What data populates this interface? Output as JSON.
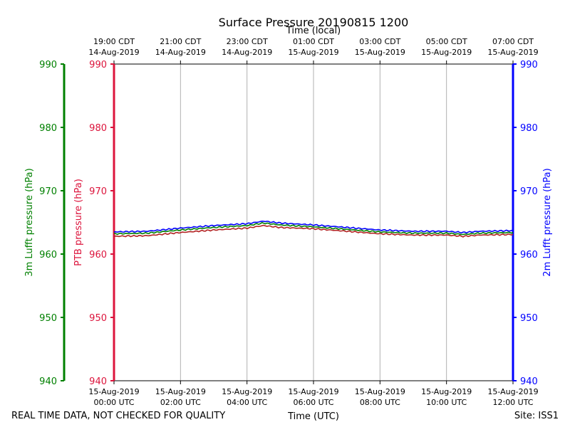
{
  "chart_data": {
    "type": "line",
    "title": "Surface Pressure 20190815 1200",
    "top_xlabel": "Time (local)",
    "xlabel": "Time (UTC)",
    "x_unit": "hours since 15-Aug-2019 00:00 UTC",
    "xlim": [
      0,
      12
    ],
    "grid": true,
    "x_ticks": [
      {
        "x": 0,
        "utc_date": "15-Aug-2019",
        "utc_time": "00:00 UTC",
        "local_time": "19:00 CDT",
        "local_date": "14-Aug-2019"
      },
      {
        "x": 2,
        "utc_date": "15-Aug-2019",
        "utc_time": "02:00 UTC",
        "local_time": "21:00 CDT",
        "local_date": "14-Aug-2019"
      },
      {
        "x": 4,
        "utc_date": "15-Aug-2019",
        "utc_time": "04:00 UTC",
        "local_time": "23:00 CDT",
        "local_date": "14-Aug-2019"
      },
      {
        "x": 6,
        "utc_date": "15-Aug-2019",
        "utc_time": "06:00 UTC",
        "local_time": "01:00 CDT",
        "local_date": "15-Aug-2019"
      },
      {
        "x": 8,
        "utc_date": "15-Aug-2019",
        "utc_time": "08:00 UTC",
        "local_time": "03:00 CDT",
        "local_date": "15-Aug-2019"
      },
      {
        "x": 10,
        "utc_date": "15-Aug-2019",
        "utc_time": "10:00 UTC",
        "local_time": "05:00 CDT",
        "local_date": "15-Aug-2019"
      },
      {
        "x": 12,
        "utc_date": "15-Aug-2019",
        "utc_time": "12:00 UTC",
        "local_time": "07:00 CDT",
        "local_date": "15-Aug-2019"
      }
    ],
    "y_axes": [
      {
        "id": "lufft3m",
        "label": "3m Lufft pressure (hPa)",
        "color": "#008000",
        "ylim": [
          940,
          990
        ],
        "ticks": [
          940,
          950,
          960,
          970,
          980,
          990
        ]
      },
      {
        "id": "ptb",
        "label": "PTB pressure (hPa)",
        "color": "#dc143c",
        "ylim": [
          940,
          990
        ],
        "ticks": [
          940,
          950,
          960,
          970,
          980,
          990
        ]
      },
      {
        "id": "lufft2m",
        "label": "2m Lufft pressure (hPa)",
        "color": "#0000ff",
        "ylim": [
          940,
          990
        ],
        "ticks": [
          940,
          950,
          960,
          970,
          980,
          990
        ]
      }
    ],
    "series": [
      {
        "name": "PTB pressure",
        "axis": "ptb",
        "color": "#b22222",
        "x": [
          0,
          1,
          2,
          3,
          4,
          4.5,
          5,
          6,
          7,
          8,
          9,
          10,
          10.5,
          11,
          12
        ],
        "y": [
          962.8,
          962.9,
          963.4,
          963.8,
          964.1,
          964.5,
          964.2,
          964.0,
          963.6,
          963.2,
          963.0,
          963.0,
          962.8,
          963.0,
          963.1
        ]
      },
      {
        "name": "3m Lufft pressure",
        "axis": "lufft3m",
        "color": "#008000",
        "x": [
          0,
          1,
          2,
          3,
          4,
          4.5,
          5,
          6,
          7,
          8,
          9,
          10,
          10.5,
          11,
          12
        ],
        "y": [
          963.2,
          963.3,
          963.8,
          964.2,
          964.5,
          964.9,
          964.6,
          964.3,
          963.9,
          963.5,
          963.3,
          963.3,
          963.1,
          963.3,
          963.4
        ]
      },
      {
        "name": "2m Lufft pressure",
        "axis": "lufft2m",
        "color": "#0000ff",
        "x": [
          0,
          1,
          2,
          3,
          4,
          4.5,
          5,
          6,
          7,
          8,
          9,
          10,
          10.5,
          11,
          12
        ],
        "y": [
          963.5,
          963.6,
          964.1,
          964.5,
          964.8,
          965.2,
          964.9,
          964.6,
          964.2,
          963.8,
          963.6,
          963.6,
          963.4,
          963.6,
          963.7
        ]
      }
    ]
  },
  "footer": {
    "disclaimer": "REAL TIME DATA, NOT CHECKED FOR QUALITY",
    "site": "Site: ISS1"
  }
}
